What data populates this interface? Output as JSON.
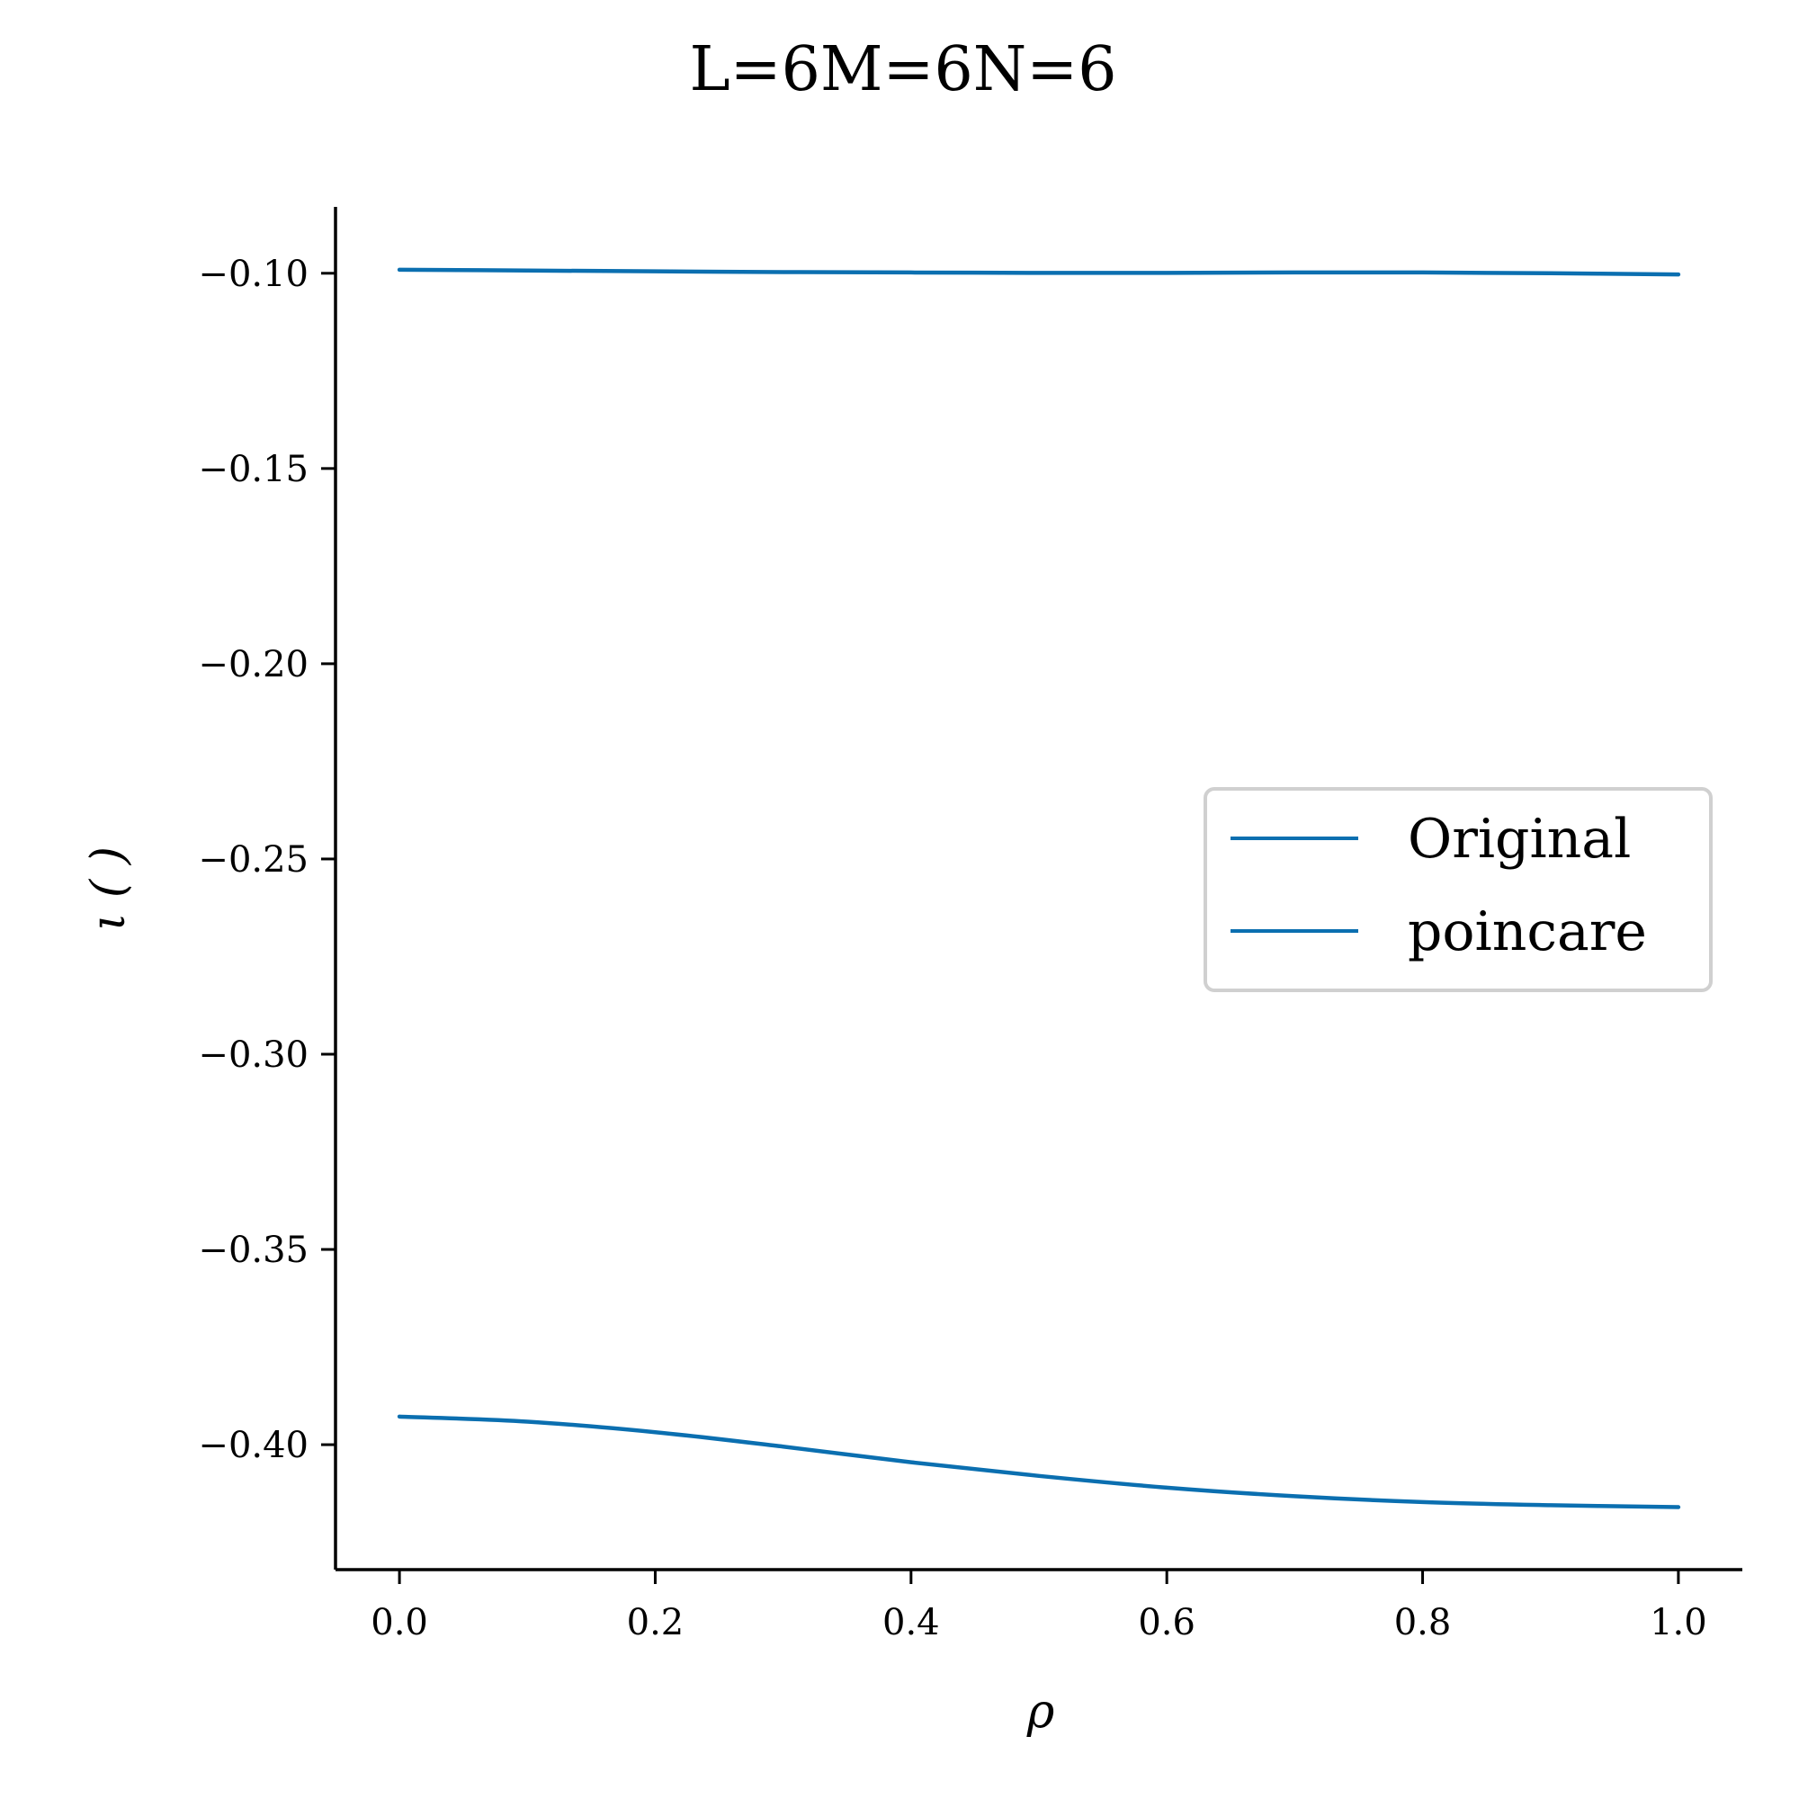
{
  "chart_data": {
    "type": "line",
    "title": "L=6M=6N=6",
    "xlabel": "ρ",
    "ylabel": "ι ( )",
    "xlim": [
      -0.05,
      1.05
    ],
    "ylim": [
      -0.432,
      -0.083
    ],
    "xticks": [
      0.0,
      0.2,
      0.4,
      0.6,
      0.8,
      1.0
    ],
    "xtick_labels": [
      "0.0",
      "0.2",
      "0.4",
      "0.6",
      "0.8",
      "1.0"
    ],
    "yticks": [
      -0.1,
      -0.15,
      -0.2,
      -0.25,
      -0.3,
      -0.35,
      -0.4
    ],
    "ytick_labels": [
      "−0.10",
      "−0.15",
      "−0.20",
      "−0.25",
      "−0.30",
      "−0.35",
      "−0.40"
    ],
    "grid": false,
    "legend_position": "center-right",
    "color": "#0b6fb0",
    "series": [
      {
        "name": "Original",
        "x": [
          0.0,
          0.1,
          0.2,
          0.3,
          0.4,
          0.5,
          0.6,
          0.7,
          0.8,
          0.9,
          1.0
        ],
        "values": [
          -0.0991,
          -0.0993,
          -0.0995,
          -0.0997,
          -0.0998,
          -0.0999,
          -0.0999,
          -0.0998,
          -0.0998,
          -0.1,
          -0.1003
        ]
      },
      {
        "name": "poincare",
        "x": [
          0.0,
          0.1,
          0.2,
          0.3,
          0.4,
          0.5,
          0.6,
          0.7,
          0.8,
          0.9,
          1.0
        ],
        "values": [
          -0.3928,
          -0.3941,
          -0.3968,
          -0.4005,
          -0.4045,
          -0.408,
          -0.411,
          -0.4132,
          -0.4147,
          -0.4155,
          -0.416
        ]
      }
    ]
  }
}
